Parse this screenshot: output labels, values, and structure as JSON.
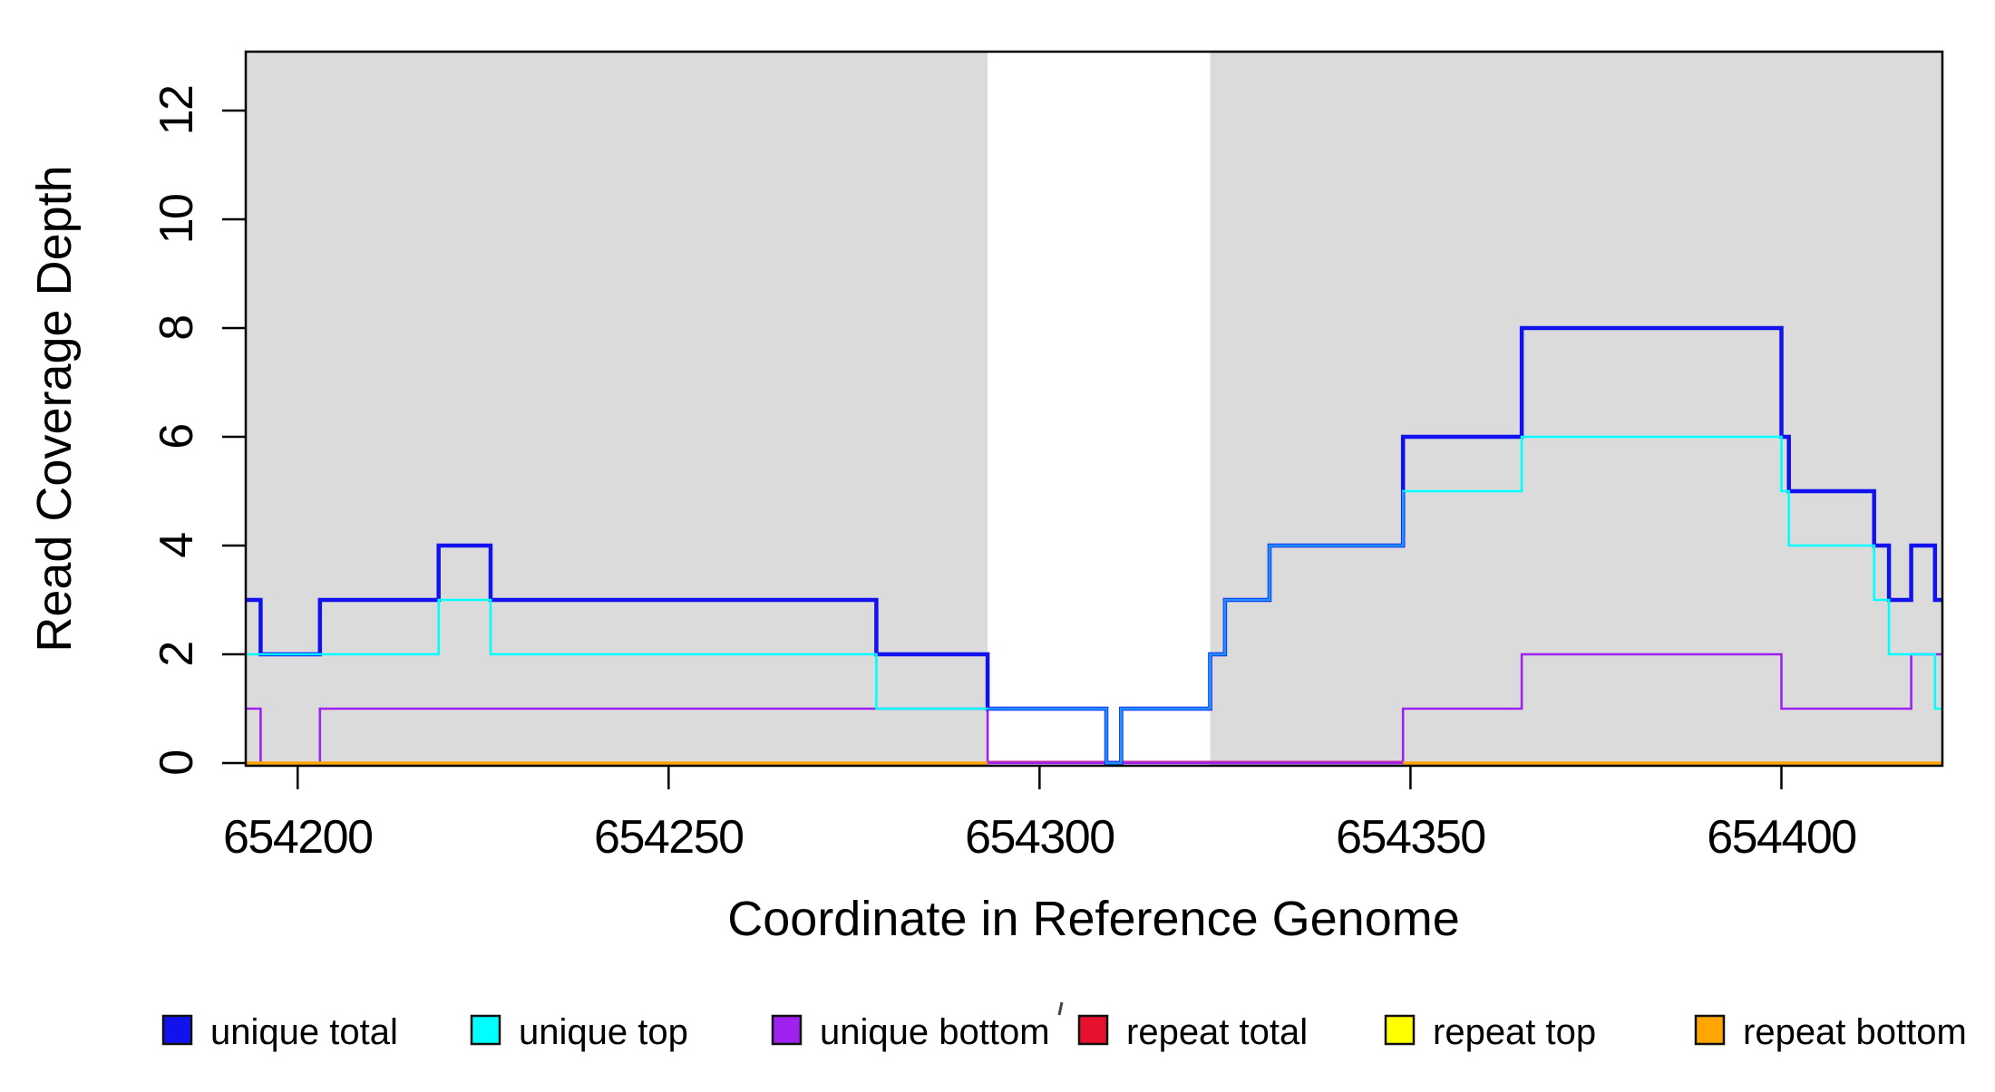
{
  "chart_data": {
    "type": "line",
    "subtype": "step-coverage",
    "xlabel": "Coordinate in Reference Genome",
    "ylabel": "Read Coverage Depth",
    "xlim": [
      654193,
      654421.7
    ],
    "ylim": [
      0,
      13.1
    ],
    "xticks": [
      654200,
      654250,
      654300,
      654350,
      654400
    ],
    "xtick_labels": [
      "654200",
      "654250",
      "654300",
      "654350",
      "654400"
    ],
    "yticks": [
      0,
      2,
      4,
      6,
      8,
      10,
      12
    ],
    "ytick_labels": [
      "0",
      "2",
      "4",
      "6",
      "8",
      "10",
      "12"
    ],
    "grid": false,
    "plot_background": "#ffffff",
    "shaded_regions": [
      {
        "name": "left-gray-region",
        "x0": 654193,
        "x1": 654293,
        "color": "#DBDBDB"
      },
      {
        "name": "right-gray-region",
        "x0": 654323,
        "x1": 654421.7,
        "color": "#DBDBDB"
      }
    ],
    "series": [
      {
        "name": "unique total",
        "color": "#1212EF",
        "width": 4.5,
        "segments": [
          {
            "steps": [
              [
                654193,
                3
              ],
              [
                654195,
                2
              ],
              [
                654203,
                3
              ],
              [
                654219,
                4
              ],
              [
                654226,
                3
              ],
              [
                654278,
                2
              ],
              [
                654293,
                1
              ],
              [
                654309,
                0
              ],
              [
                654311,
                1
              ],
              [
                654323,
                2
              ],
              [
                654325,
                3
              ],
              [
                654331,
                4
              ],
              [
                654349,
                6
              ],
              [
                654365,
                8
              ],
              [
                654400,
                6
              ],
              [
                654401,
                5
              ],
              [
                654412.5,
                4
              ],
              [
                654414.5,
                3
              ],
              [
                654417.5,
                4
              ],
              [
                654420.7,
                3
              ]
            ],
            "end": 654421.7
          }
        ]
      },
      {
        "name": "unique top",
        "color": "#00FFFF",
        "width": 2.6,
        "segments": [
          {
            "steps": [
              [
                654193,
                2
              ],
              [
                654219,
                3
              ],
              [
                654226,
                2
              ],
              [
                654278,
                1
              ],
              [
                654309,
                0
              ],
              [
                654311,
                1
              ],
              [
                654323,
                2
              ],
              [
                654325,
                3
              ],
              [
                654331,
                4
              ],
              [
                654349,
                5
              ],
              [
                654365,
                6
              ],
              [
                654400,
                5
              ],
              [
                654401,
                4
              ],
              [
                654412.5,
                3
              ],
              [
                654414.5,
                2
              ],
              [
                654420.7,
                1
              ]
            ],
            "end": 654421.7
          }
        ]
      },
      {
        "name": "unique bottom",
        "color": "#A020F0",
        "width": 2.6,
        "segments": [
          {
            "steps": [
              [
                654193,
                1
              ],
              [
                654195,
                0
              ],
              [
                654203,
                1
              ],
              [
                654293,
                0
              ],
              [
                654349,
                1
              ],
              [
                654365,
                2
              ],
              [
                654400,
                1
              ],
              [
                654417.5,
                2
              ]
            ],
            "end": 654421.7
          }
        ]
      },
      {
        "name": "repeat total",
        "color": "#E8112D",
        "width": 2.5,
        "dy": -1.2,
        "segments": [
          {
            "steps": [
              [
                654293,
                0
              ]
            ],
            "end": 654349
          }
        ],
        "visible_stripe_color": "#C92E98"
      },
      {
        "name": "repeat top",
        "color": "#FFFF00",
        "width": 2.0,
        "segments": []
      },
      {
        "name": "repeat bottom",
        "color": "#FFA500",
        "width": 3.5,
        "segments": [
          {
            "steps": [
              [
                654193,
                0
              ]
            ],
            "end": 654293
          },
          {
            "steps": [
              [
                654349,
                0
              ]
            ],
            "end": 654421.7
          }
        ]
      }
    ],
    "overlap_core": {
      "note": "where unique total and unique top coincide the line core renders light blue",
      "color": "#1E90FF",
      "width": 2.2,
      "segments": [
        {
          "steps": [
            [
              654293,
              1
            ],
            [
              654309,
              0
            ],
            [
              654311,
              1
            ],
            [
              654323,
              2
            ],
            [
              654325,
              3
            ],
            [
              654331,
              4
            ],
            [
              654349,
              5
            ]
          ],
          "end": 654349
        }
      ]
    }
  },
  "legend": {
    "items": [
      {
        "label": "unique total",
        "color": "#1212EF"
      },
      {
        "label": "unique top",
        "color": "#00FFFF"
      },
      {
        "label": "unique bottom",
        "color": "#A020F0"
      },
      {
        "label": "repeat total",
        "color": "#E8112D"
      },
      {
        "label": "repeat top",
        "color": "#FFFF00"
      },
      {
        "label": "repeat bottom",
        "color": "#FFA500"
      }
    ]
  }
}
